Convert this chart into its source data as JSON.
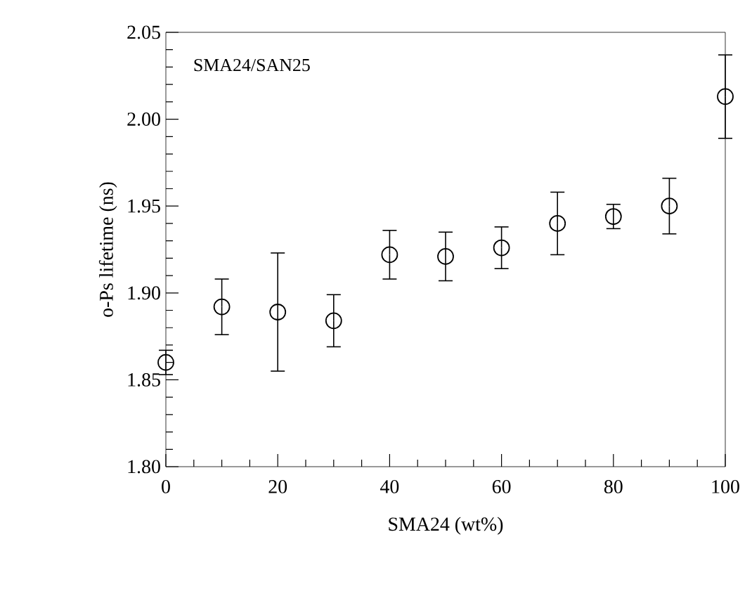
{
  "chart_data": {
    "type": "scatter",
    "xlabel": "SMA24 (wt%)",
    "ylabel": "o-Ps lifetime (ns)",
    "annotations": [
      "SMA24/SAN25"
    ],
    "x": [
      0,
      10,
      20,
      30,
      40,
      50,
      60,
      70,
      80,
      90,
      100
    ],
    "values": [
      1.86,
      1.892,
      1.889,
      1.884,
      1.922,
      1.921,
      1.926,
      1.94,
      1.944,
      1.95,
      2.013
    ],
    "errors": [
      0.007,
      0.016,
      0.034,
      0.015,
      0.014,
      0.014,
      0.012,
      0.018,
      0.007,
      0.016,
      0.024
    ],
    "color": "#000000",
    "xlim": [
      0,
      100
    ],
    "xticks": [
      0,
      20,
      40,
      60,
      80,
      100
    ],
    "ylim": [
      1.8,
      2.05
    ],
    "yticks": [
      {
        "value": 1.8,
        "label": "1.80"
      },
      {
        "value": 1.85,
        "label": "1.85"
      },
      {
        "value": 1.9,
        "label": "1.90"
      },
      {
        "value": 1.95,
        "label": "1.95"
      },
      {
        "value": 2.0,
        "label": "2.00"
      },
      {
        "value": 2.05,
        "label": "2.05"
      }
    ],
    "marker": "circle"
  }
}
